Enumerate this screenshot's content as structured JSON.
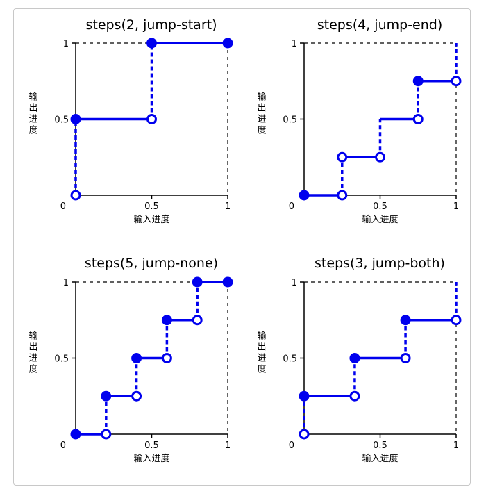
{
  "chart_data": [
    {
      "type": "line",
      "title": "steps(2, jump-start)",
      "xlabel": "输入进度",
      "ylabel": "输出进度",
      "xlim": [
        0,
        1
      ],
      "ylim": [
        0,
        1
      ],
      "x_ticks": [
        "0.5",
        "1"
      ],
      "y_ticks": [
        "1",
        "0.5"
      ],
      "origin_label": "0",
      "segments": [
        {
          "x": [
            0,
            0.5
          ],
          "y": 0.5
        },
        {
          "x": [
            0.5,
            1
          ],
          "y": 1
        }
      ],
      "jumps": [
        {
          "x": 0,
          "y": [
            0,
            0.5
          ]
        },
        {
          "x": 0.5,
          "y": [
            0.5,
            1
          ]
        }
      ],
      "filled_points": [
        [
          0,
          0.5
        ],
        [
          0.5,
          1
        ],
        [
          1,
          1
        ]
      ],
      "open_points": [
        [
          0,
          0
        ],
        [
          0.5,
          0.5
        ]
      ]
    },
    {
      "type": "line",
      "title": "steps(4, jump-end)",
      "xlabel": "输入进度",
      "ylabel": "输出进度",
      "xlim": [
        0,
        1
      ],
      "ylim": [
        0,
        1
      ],
      "x_ticks": [
        "0.5",
        "1"
      ],
      "y_ticks": [
        "1",
        "0.5"
      ],
      "origin_label": "0",
      "segments": [
        {
          "x": [
            0,
            0.25
          ],
          "y": 0
        },
        {
          "x": [
            0.25,
            0.5
          ],
          "y": 0.25
        },
        {
          "x": [
            0.5,
            0.75
          ],
          "y": 0.5
        },
        {
          "x": [
            0.75,
            1
          ],
          "y": 0.75
        }
      ],
      "jumps": [
        {
          "x": 0.25,
          "y": [
            0,
            0.25
          ]
        },
        {
          "x": 0.5,
          "y": [
            0.25,
            0.5
          ]
        },
        {
          "x": 0.75,
          "y": [
            0.5,
            0.75
          ]
        },
        {
          "x": 1,
          "y": [
            0.75,
            1
          ]
        }
      ],
      "filled_points": [
        [
          0,
          0
        ],
        [
          0.75,
          0.75
        ]
      ],
      "open_points": [
        [
          0.25,
          0
        ],
        [
          0.25,
          0.25
        ],
        [
          0.5,
          0.25
        ],
        [
          0.75,
          0.5
        ],
        [
          1,
          0.75
        ]
      ]
    },
    {
      "type": "line",
      "title": "steps(5, jump-none)",
      "xlabel": "输入进度",
      "ylabel": "输出进度",
      "xlim": [
        0,
        1
      ],
      "ylim": [
        0,
        1
      ],
      "x_ticks": [
        "0.5",
        "1"
      ],
      "y_ticks": [
        "1",
        "0.5"
      ],
      "origin_label": "0",
      "segments": [
        {
          "x": [
            0,
            0.2
          ],
          "y": 0
        },
        {
          "x": [
            0.2,
            0.4
          ],
          "y": 0.25
        },
        {
          "x": [
            0.4,
            0.6
          ],
          "y": 0.5
        },
        {
          "x": [
            0.6,
            0.8
          ],
          "y": 0.75
        },
        {
          "x": [
            0.8,
            1
          ],
          "y": 1
        }
      ],
      "jumps": [
        {
          "x": 0.2,
          "y": [
            0,
            0.25
          ]
        },
        {
          "x": 0.4,
          "y": [
            0.25,
            0.5
          ]
        },
        {
          "x": 0.6,
          "y": [
            0.5,
            0.75
          ]
        },
        {
          "x": 0.8,
          "y": [
            0.75,
            1
          ]
        }
      ],
      "filled_points": [
        [
          0,
          0
        ],
        [
          0.2,
          0.25
        ],
        [
          0.4,
          0.5
        ],
        [
          0.6,
          0.75
        ],
        [
          0.8,
          1
        ],
        [
          1,
          1
        ]
      ],
      "open_points": [
        [
          0.2,
          0
        ],
        [
          0.4,
          0.25
        ],
        [
          0.6,
          0.5
        ],
        [
          0.8,
          0.75
        ]
      ]
    },
    {
      "type": "line",
      "title": "steps(3, jump-both)",
      "xlabel": "输入进度",
      "ylabel": "输出进度",
      "xlim": [
        0,
        1
      ],
      "ylim": [
        0,
        1
      ],
      "x_ticks": [
        "0.5",
        "1"
      ],
      "y_ticks": [
        "1",
        "0.5"
      ],
      "origin_label": "0",
      "segments": [
        {
          "x": [
            0,
            0.333
          ],
          "y": 0.25
        },
        {
          "x": [
            0.333,
            0.667
          ],
          "y": 0.5
        },
        {
          "x": [
            0.667,
            1
          ],
          "y": 0.75
        }
      ],
      "jumps": [
        {
          "x": 0,
          "y": [
            0,
            0.25
          ]
        },
        {
          "x": 0.333,
          "y": [
            0.25,
            0.5
          ]
        },
        {
          "x": 0.667,
          "y": [
            0.5,
            0.75
          ]
        },
        {
          "x": 1,
          "y": [
            0.75,
            1
          ]
        }
      ],
      "filled_points": [
        [
          0,
          0.25
        ],
        [
          0.333,
          0.5
        ],
        [
          0.667,
          0.75
        ]
      ],
      "open_points": [
        [
          0,
          0
        ],
        [
          0.333,
          0.25
        ],
        [
          0.667,
          0.5
        ],
        [
          1,
          0.75
        ]
      ]
    }
  ],
  "colors": {
    "series": "#0000ee",
    "axis": "#000000",
    "frame": "#c8c8c8"
  }
}
